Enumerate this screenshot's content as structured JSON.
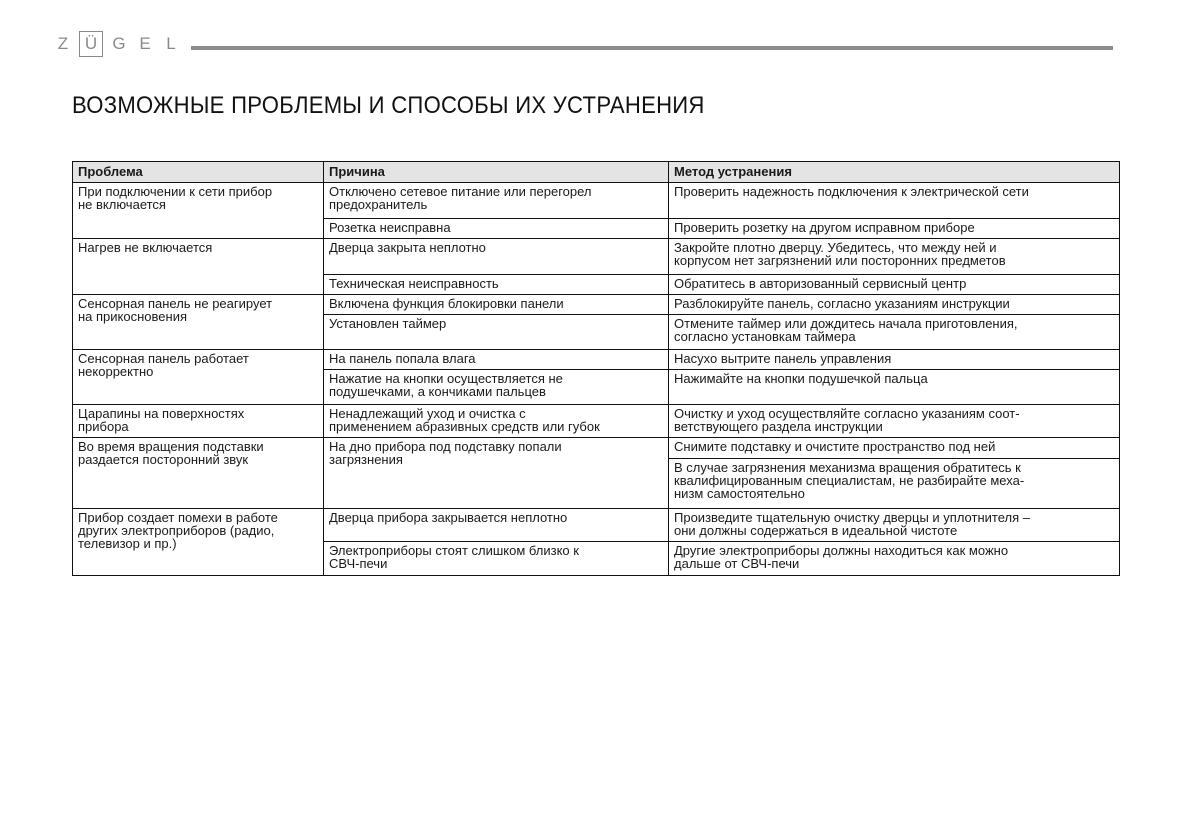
{
  "logo": {
    "letters": [
      "Z",
      "Ü",
      "G",
      "E",
      "L"
    ]
  },
  "title": "ВОЗМОЖНЫЕ ПРОБЛЕМЫ И СПОСОБЫ ИХ УСТРАНЕНИЯ",
  "table": {
    "headers": [
      "Проблема",
      "Причина",
      "Метод устранения"
    ],
    "groups": [
      {
        "problem": "При подключении к сети прибор\nне включается",
        "rows": [
          {
            "cause": "Отключено сетевое питание или перегорел\nпредохранитель",
            "fix": "Проверить надежность подключения к электрической сети"
          },
          {
            "cause": "Розетка неисправна",
            "fix": "Проверить розетку на другом исправном приборе"
          }
        ]
      },
      {
        "problem": "Нагрев не включается",
        "rows": [
          {
            "cause": "Дверца закрыта неплотно",
            "fix": "Закройте плотно дверцу. Убедитесь, что между ней и\nкорпусом нет загрязнений или посторонних предметов"
          },
          {
            "cause": "Техническая неисправность",
            "fix": "Обратитесь в авторизованный сервисный центр"
          }
        ]
      },
      {
        "problem": "Сенсорная панель не реагирует\nна прикосновения",
        "rows": [
          {
            "cause": "Включена функция блокировки панели",
            "fix": "Разблокируйте панель, согласно указаниям инструкции"
          },
          {
            "cause": "Установлен таймер",
            "fix": "Отмените таймер или дождитесь начала приготовления,\nсогласно установкам таймера"
          }
        ]
      },
      {
        "problem": "Сенсорная панель работает\nнекорректно",
        "rows": [
          {
            "cause": "На панель попала влага",
            "fix": "Насухо вытрите панель управления"
          },
          {
            "cause": "Нажатие на кнопки осуществляется не\nподушечками, а кончиками пальцев",
            "fix": "Нажимайте на кнопки подушечкой пальца"
          }
        ]
      },
      {
        "problem": "Царапины на поверхностях\nприбора",
        "rows": [
          {
            "cause": "Ненадлежащий уход и очистка с\nприменением абразивных средств или губок",
            "fix": "Очистку и уход осуществляйте согласно указаниям соот-\nветствующего раздела инструкции"
          }
        ]
      },
      {
        "problem": "Во время вращения подставки\nраздается посторонний звук",
        "rows": [
          {
            "cause": "На дно прибора под подставку попали\nзагрязнения",
            "fix": "Снимите подставку и очистите пространство под ней"
          },
          {
            "fix": "В случае загрязнения механизма вращения обратитесь к\nквалифицированным специалистам, не разбирайте меха-\nнизм самостоятельно"
          }
        ]
      },
      {
        "problem": "Прибор создает помехи в работе\nдругих электроприборов (радио,\nтелевизор и пр.)",
        "rows": [
          {
            "cause": "Дверца прибора закрывается неплотно",
            "fix": "Произведите тщательную очистку дверцы и уплотнителя –\nони должны содержаться в идеальной чистоте"
          },
          {
            "cause": "Электроприборы стоят слишком близко к\nСВЧ-печи",
            "fix": "Другие электроприборы должны находиться как можно\nдальше от СВЧ-печи"
          }
        ]
      }
    ]
  }
}
